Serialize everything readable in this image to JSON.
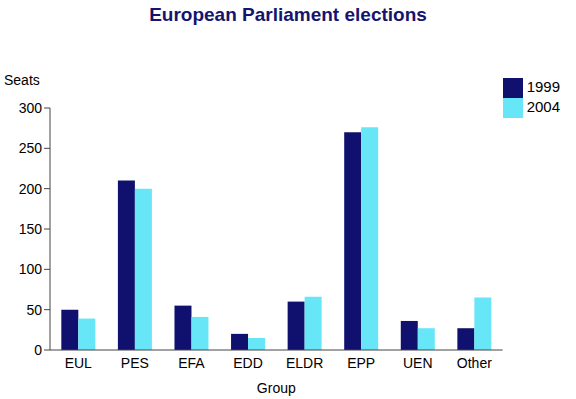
{
  "chart_data": {
    "type": "bar",
    "title": "European Parliament elections",
    "x_label": "Group",
    "y_label": "Seats",
    "categories": [
      "EUL",
      "PES",
      "EFA",
      "EDD",
      "ELDR",
      "EPP",
      "UEN",
      "Other"
    ],
    "series": [
      {
        "name": "1999",
        "color": "#10106e",
        "values": [
          50,
          210,
          55,
          20,
          60,
          270,
          36,
          27
        ]
      },
      {
        "name": "2004",
        "color": "#66e6f7",
        "values": [
          39,
          200,
          41,
          15,
          66,
          276,
          27,
          65
        ]
      }
    ],
    "ylim": [
      0,
      300
    ],
    "yticks": [
      0,
      50,
      100,
      150,
      200,
      250,
      300
    ],
    "grid": false,
    "legend": "top-right"
  }
}
